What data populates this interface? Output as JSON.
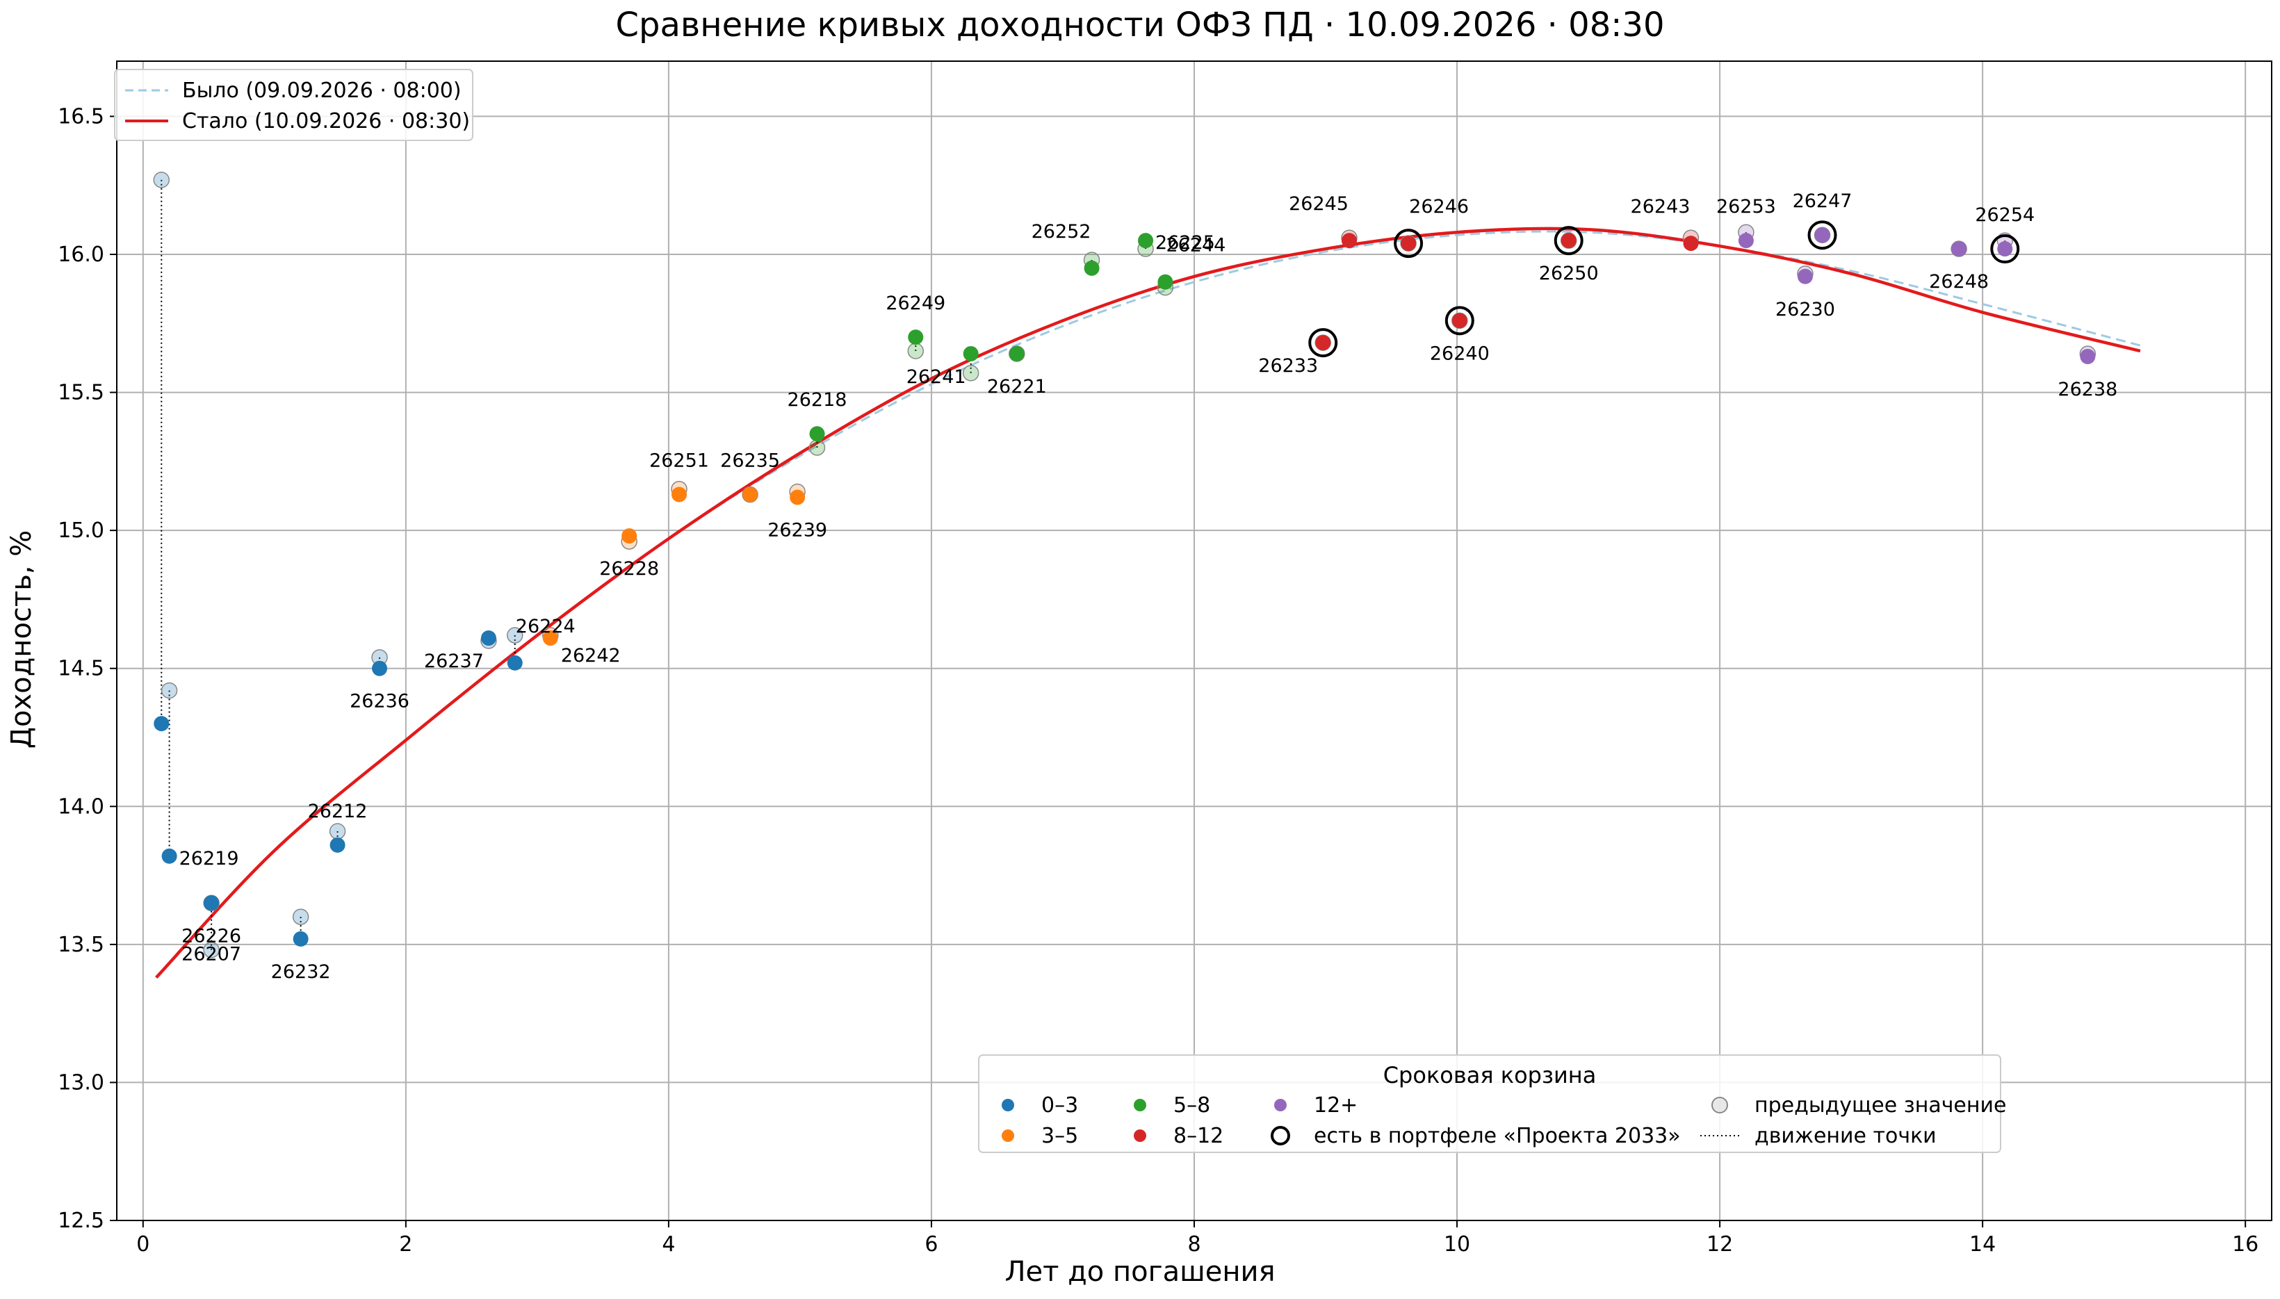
{
  "chart_data": {
    "type": "scatter",
    "title": "Сравнение кривых доходности ОФЗ ПД · 10.09.2026 · 08:30",
    "xlabel": "Лет до погашения",
    "ylabel": "Доходность, %",
    "xlim": [
      -0.2,
      16.2
    ],
    "ylim": [
      12.5,
      16.7
    ],
    "xticks": [
      0,
      2,
      4,
      6,
      8,
      10,
      12,
      14,
      16
    ],
    "yticks": [
      12.5,
      13.0,
      13.5,
      14.0,
      14.5,
      15.0,
      15.5,
      16.0,
      16.5
    ],
    "xtick_labels": [
      "0",
      "2",
      "4",
      "6",
      "8",
      "10",
      "12",
      "14",
      "16"
    ],
    "ytick_labels": [
      "12.5",
      "13.0",
      "13.5",
      "14.0",
      "14.5",
      "15.0",
      "15.5",
      "16.0",
      "16.5"
    ],
    "grid": true,
    "curves": [
      {
        "name": "Было (09.09.2026 · 08:00)",
        "style": "dashed",
        "color": "#9ecae1",
        "x": [
          0.1,
          1,
          2,
          3,
          4,
          5,
          6,
          7,
          8,
          9,
          10,
          11,
          12,
          13,
          14,
          15.2
        ],
        "y": [
          13.38,
          13.84,
          14.24,
          14.62,
          14.97,
          15.27,
          15.53,
          15.74,
          15.9,
          16.01,
          16.07,
          16.08,
          16.03,
          15.94,
          15.82,
          15.67
        ]
      },
      {
        "name": "Стало (10.09.2026 · 08:30)",
        "style": "solid",
        "color": "#e31a1c",
        "x": [
          0.1,
          1,
          2,
          3,
          4,
          5,
          6,
          7,
          8,
          9,
          10,
          11,
          12,
          13,
          14,
          15.2
        ],
        "y": [
          13.38,
          13.84,
          14.24,
          14.62,
          14.97,
          15.28,
          15.55,
          15.76,
          15.92,
          16.02,
          16.08,
          16.09,
          16.03,
          15.93,
          15.79,
          15.65
        ]
      }
    ],
    "buckets": [
      {
        "name": "0–3",
        "color": "#1f77b4"
      },
      {
        "name": "3–5",
        "color": "#ff7f0e"
      },
      {
        "name": "5–8",
        "color": "#2ca02c"
      },
      {
        "name": "8–12",
        "color": "#d62728"
      },
      {
        "name": "12+",
        "color": "#9467bd"
      }
    ],
    "bonds": [
      {
        "id": "26219",
        "b": 0,
        "x": 0.14,
        "y": 14.3,
        "px": 0.14,
        "py": 16.27,
        "portfolio": false,
        "label": "",
        "lpos": "r"
      },
      {
        "id": "26219",
        "b": 0,
        "x": 0.2,
        "y": 13.82,
        "px": 0.2,
        "py": 14.42,
        "portfolio": false,
        "label": "26219",
        "lpos": "r"
      },
      {
        "id": "26226",
        "b": 0,
        "x": 0.52,
        "y": 13.65,
        "px": 0.52,
        "py": 13.65,
        "portfolio": false,
        "label": "26226",
        "lpos": "b"
      },
      {
        "id": "26207",
        "b": 0,
        "x": 0.52,
        "y": 13.65,
        "px": 0.52,
        "py": 13.48,
        "portfolio": false,
        "label": "26207",
        "lpos": "b2"
      },
      {
        "id": "26232",
        "b": 0,
        "x": 1.2,
        "y": 13.52,
        "px": 1.2,
        "py": 13.6,
        "portfolio": false,
        "label": "26232",
        "lpos": "b"
      },
      {
        "id": "26212",
        "b": 0,
        "x": 1.48,
        "y": 13.86,
        "px": 1.48,
        "py": 13.91,
        "portfolio": false,
        "label": "26212",
        "lpos": "t"
      },
      {
        "id": "26236",
        "b": 0,
        "x": 1.8,
        "y": 14.5,
        "px": 1.8,
        "py": 14.54,
        "portfolio": false,
        "label": "26236",
        "lpos": "b"
      },
      {
        "id": "26237",
        "b": 0,
        "x": 2.63,
        "y": 14.61,
        "px": 2.63,
        "py": 14.6,
        "portfolio": false,
        "label": "26237",
        "lpos": "bl"
      },
      {
        "id": "26224",
        "b": 0,
        "x": 2.83,
        "y": 14.52,
        "px": 2.83,
        "py": 14.62,
        "portfolio": false,
        "label": "26224",
        "lpos": "tr"
      },
      {
        "id": "26242",
        "b": 1,
        "x": 3.1,
        "y": 14.61,
        "px": 3.1,
        "py": 14.62,
        "portfolio": false,
        "label": "26242",
        "lpos": "br"
      },
      {
        "id": "26228",
        "b": 1,
        "x": 3.7,
        "y": 14.98,
        "px": 3.7,
        "py": 14.96,
        "portfolio": false,
        "label": "26228",
        "lpos": "b"
      },
      {
        "id": "26251",
        "b": 1,
        "x": 4.08,
        "y": 15.13,
        "px": 4.08,
        "py": 15.15,
        "portfolio": false,
        "label": "26251",
        "lpos": "t"
      },
      {
        "id": "26235",
        "b": 1,
        "x": 4.62,
        "y": 15.13,
        "px": 4.62,
        "py": 15.13,
        "portfolio": false,
        "label": "26235",
        "lpos": "t"
      },
      {
        "id": "26239",
        "b": 1,
        "x": 4.98,
        "y": 15.12,
        "px": 4.98,
        "py": 15.14,
        "portfolio": false,
        "label": "26239",
        "lpos": "b"
      },
      {
        "id": "26218",
        "b": 2,
        "x": 5.13,
        "y": 15.35,
        "px": 5.13,
        "py": 15.3,
        "portfolio": false,
        "label": "26218",
        "lpos": "t"
      },
      {
        "id": "26249",
        "b": 2,
        "x": 5.88,
        "y": 15.7,
        "px": 5.88,
        "py": 15.65,
        "portfolio": false,
        "label": "26249",
        "lpos": "t"
      },
      {
        "id": "26241",
        "b": 2,
        "x": 6.3,
        "y": 15.64,
        "px": 6.3,
        "py": 15.57,
        "portfolio": false,
        "label": "26241",
        "lpos": "bl"
      },
      {
        "id": "26221",
        "b": 2,
        "x": 6.65,
        "y": 15.64,
        "px": 6.65,
        "py": 15.64,
        "portfolio": false,
        "label": "26221",
        "lpos": "b"
      },
      {
        "id": "26252",
        "b": 2,
        "x": 7.22,
        "y": 15.95,
        "px": 7.22,
        "py": 15.98,
        "portfolio": false,
        "label": "26252",
        "lpos": "tl"
      },
      {
        "id": "26225",
        "b": 2,
        "x": 7.63,
        "y": 16.05,
        "px": 7.63,
        "py": 16.02,
        "portfolio": false,
        "label": "26225",
        "lpos": "r"
      },
      {
        "id": "26244",
        "b": 2,
        "x": 7.78,
        "y": 15.9,
        "px": 7.78,
        "py": 15.88,
        "portfolio": false,
        "label": "26244",
        "lpos": "tr"
      },
      {
        "id": "26233",
        "b": 3,
        "x": 8.98,
        "y": 15.68,
        "px": 8.98,
        "py": 15.68,
        "portfolio": true,
        "label": "26233",
        "lpos": "bl"
      },
      {
        "id": "26245",
        "b": 3,
        "x": 9.18,
        "y": 16.05,
        "px": 9.18,
        "py": 16.06,
        "portfolio": false,
        "label": "26245",
        "lpos": "tl"
      },
      {
        "id": "26246",
        "b": 3,
        "x": 9.63,
        "y": 16.04,
        "px": 9.63,
        "py": 16.04,
        "portfolio": true,
        "label": "26246",
        "lpos": "tr"
      },
      {
        "id": "26240",
        "b": 3,
        "x": 10.02,
        "y": 15.76,
        "px": 10.02,
        "py": 15.76,
        "portfolio": true,
        "label": "26240",
        "lpos": "b"
      },
      {
        "id": "26250",
        "b": 3,
        "x": 10.85,
        "y": 16.05,
        "px": 10.85,
        "py": 16.05,
        "portfolio": true,
        "label": "26250",
        "lpos": "b"
      },
      {
        "id": "26243",
        "b": 3,
        "x": 11.78,
        "y": 16.04,
        "px": 11.78,
        "py": 16.06,
        "portfolio": false,
        "label": "26243",
        "lpos": "tl"
      },
      {
        "id": "26253",
        "b": 4,
        "x": 12.2,
        "y": 16.05,
        "px": 12.2,
        "py": 16.08,
        "portfolio": false,
        "label": "26253",
        "lpos": "t"
      },
      {
        "id": "26230",
        "b": 4,
        "x": 12.65,
        "y": 15.92,
        "px": 12.65,
        "py": 15.93,
        "portfolio": false,
        "label": "26230",
        "lpos": "b"
      },
      {
        "id": "26247",
        "b": 4,
        "x": 12.78,
        "y": 16.07,
        "px": 12.78,
        "py": 16.07,
        "portfolio": true,
        "label": "26247",
        "lpos": "t"
      },
      {
        "id": "26248",
        "b": 4,
        "x": 13.82,
        "y": 16.02,
        "px": 13.82,
        "py": 16.02,
        "portfolio": false,
        "label": "26248",
        "lpos": "b"
      },
      {
        "id": "26254",
        "b": 4,
        "x": 14.17,
        "y": 16.02,
        "px": 14.17,
        "py": 16.05,
        "portfolio": true,
        "label": "26254",
        "lpos": "t"
      },
      {
        "id": "26238",
        "b": 4,
        "x": 14.8,
        "y": 15.63,
        "px": 14.8,
        "py": 15.64,
        "portfolio": false,
        "label": "26238",
        "lpos": "b"
      }
    ],
    "legend_top": {
      "placement": "top-left",
      "items": [
        "Было (09.09.2026 · 08:00)",
        "Стало (10.09.2026 · 08:30)"
      ]
    },
    "legend_bottom": {
      "placement": "lower-center",
      "title": "Сроковая корзина",
      "portfolio_label": "есть в портфеле «Проекта 2033»",
      "prev_label": "предыдущее значение",
      "move_label": "движение точки"
    }
  }
}
